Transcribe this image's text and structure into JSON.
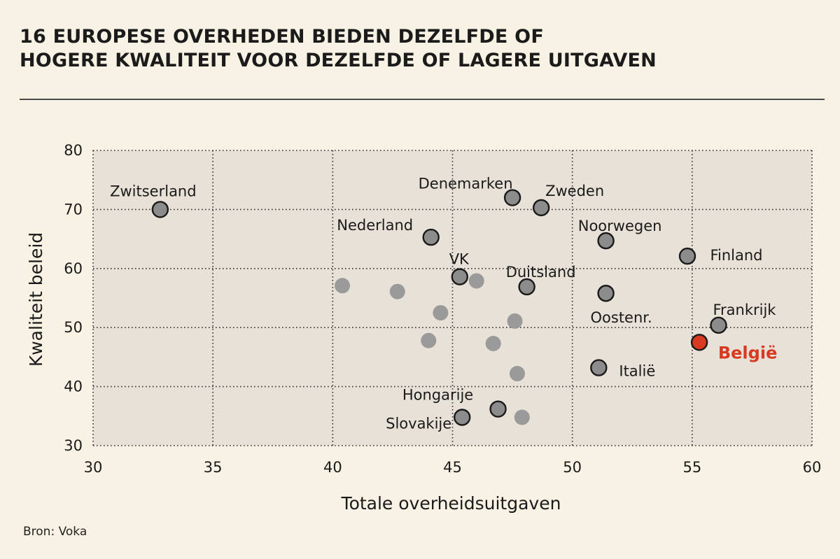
{
  "header": {
    "title_line1": "16 EUROPESE OVERHEDEN BIEDEN DEZELFDE OF",
    "title_line2": "HOGERE KWALITEIT VOOR DEZELFDE OF LAGERE UITGAVEN"
  },
  "footer": {
    "source": "Bron: Voka"
  },
  "colors": {
    "background": "#f8f2e4",
    "plot_area": "#e7e1d7",
    "labeled_point": "#8c8c8c",
    "unlabeled_point": "#9a9a9a",
    "highlight": "#d83a21"
  },
  "chart_data": {
    "type": "scatter",
    "title": "16 EUROPESE OVERHEDEN BIEDEN DEZELFDE OF HOGERE KWALITEIT VOOR DEZELFDE OF LAGERE UITGAVEN",
    "xlabel": "Totale overheidsuitgaven",
    "ylabel": "Kwaliteit beleid",
    "xlim": [
      30,
      60
    ],
    "ylim": [
      30,
      80
    ],
    "xticks": [
      30,
      35,
      40,
      45,
      50,
      55,
      60
    ],
    "yticks": [
      30,
      40,
      50,
      60,
      70,
      80
    ],
    "grid": true,
    "labeled_points": [
      {
        "label": "Zwitserland",
        "x": 32.8,
        "y": 70.0
      },
      {
        "label": "Denemarken",
        "x": 47.5,
        "y": 72.0
      },
      {
        "label": "Zweden",
        "x": 48.7,
        "y": 70.3
      },
      {
        "label": "Nederland",
        "x": 44.1,
        "y": 65.3
      },
      {
        "label": "Noorwegen",
        "x": 51.4,
        "y": 64.7
      },
      {
        "label": "Finland",
        "x": 54.8,
        "y": 62.1
      },
      {
        "label": "VK",
        "x": 45.3,
        "y": 58.6
      },
      {
        "label": "Duitsland",
        "x": 48.1,
        "y": 56.9
      },
      {
        "label": "Oostenr.",
        "x": 51.4,
        "y": 55.8
      },
      {
        "label": "Frankrijk",
        "x": 56.1,
        "y": 50.4
      },
      {
        "label": "België",
        "x": 55.3,
        "y": 47.5,
        "highlight": true
      },
      {
        "label": "Italië",
        "x": 51.1,
        "y": 43.2
      },
      {
        "label": "Hongarije",
        "x": 46.9,
        "y": 36.2
      },
      {
        "label": "Slovakije",
        "x": 45.4,
        "y": 34.8
      }
    ],
    "unlabeled_points": [
      {
        "x": 40.4,
        "y": 57.1
      },
      {
        "x": 42.7,
        "y": 56.1
      },
      {
        "x": 46.0,
        "y": 57.9
      },
      {
        "x": 44.5,
        "y": 52.5
      },
      {
        "x": 47.6,
        "y": 51.1
      },
      {
        "x": 44.0,
        "y": 47.8
      },
      {
        "x": 46.7,
        "y": 47.3
      },
      {
        "x": 47.7,
        "y": 42.2
      },
      {
        "x": 47.9,
        "y": 34.8
      }
    ]
  }
}
